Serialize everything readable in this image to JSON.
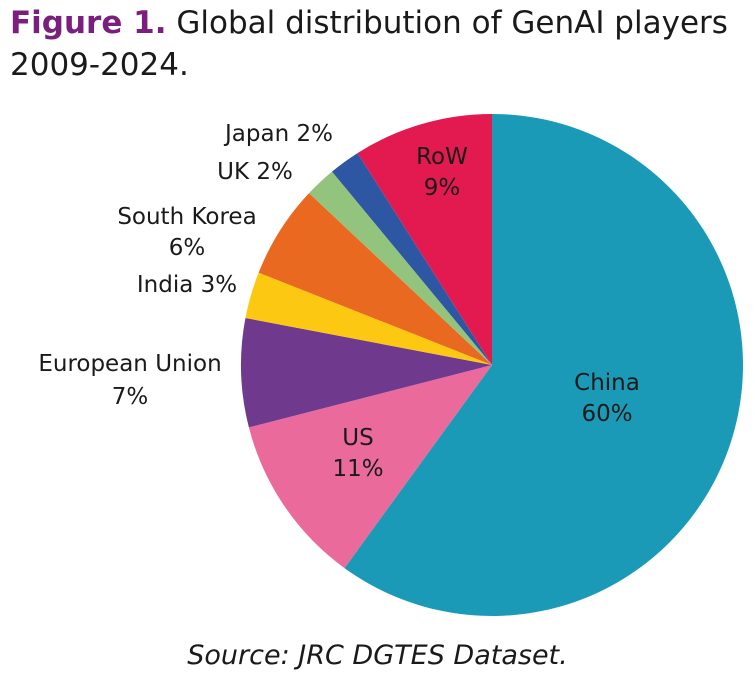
{
  "figure": {
    "label": "Figure 1.",
    "title": "Global distribution of GenAI players 2009-2024."
  },
  "chart_data": {
    "type": "pie",
    "slices": [
      {
        "name": "China",
        "value": 60,
        "label": "60%",
        "color": "#1b9ab7"
      },
      {
        "name": "US",
        "value": 11,
        "label": "11%",
        "color": "#eb6a9c"
      },
      {
        "name": "European Union",
        "value": 7,
        "label": "7%",
        "color": "#6f3a8d"
      },
      {
        "name": "India",
        "value": 3,
        "label": "3%",
        "color": "#fcc812"
      },
      {
        "name": "South Korea",
        "value": 6,
        "label": "6%",
        "color": "#e8691f"
      },
      {
        "name": "UK",
        "value": 2,
        "label": "2%",
        "color": "#93c47d"
      },
      {
        "name": "Japan",
        "value": 2,
        "label": "2%",
        "color": "#2d57a3"
      },
      {
        "name": "RoW",
        "value": 9,
        "label": "9%",
        "color": "#e31a4f"
      }
    ]
  },
  "source": "Source: JRC DGTES Dataset."
}
